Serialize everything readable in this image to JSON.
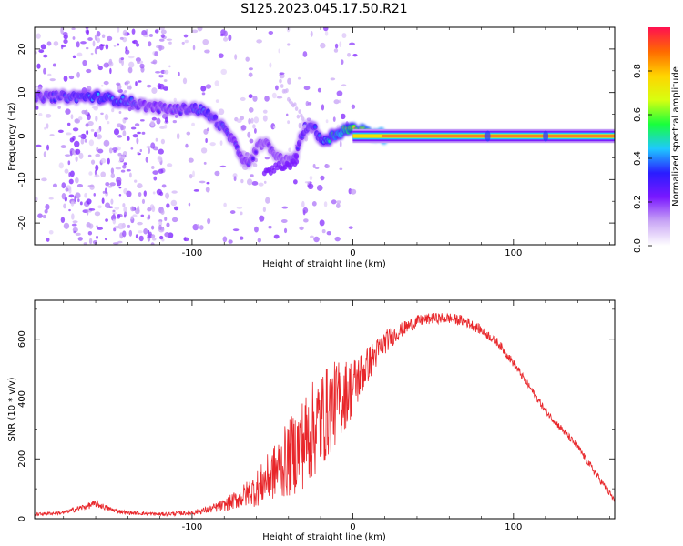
{
  "figure": {
    "title": "S125.2023.045.17.50.R21"
  },
  "chart_data": [
    {
      "type": "heatmap",
      "title": "",
      "xlabel": "Height of straight line (km)",
      "ylabel": "Frequency (Hz)",
      "xlim": [
        -198,
        163
      ],
      "ylim": [
        -25,
        25
      ],
      "x_ticks": [
        -100,
        0,
        100
      ],
      "y_ticks": [
        -20,
        -10,
        0,
        10,
        20
      ],
      "colorbar": {
        "label": "Normalized spectral amplitude",
        "range": [
          0,
          1
        ],
        "ticks": [
          "0.0",
          "0.2",
          "0.4",
          "0.6",
          "0.8"
        ],
        "colors": [
          "#ffffff",
          "#c9a6f5",
          "#7a18ff",
          "#2a1cff",
          "#1ec8ff",
          "#18ff3c",
          "#d7ff10",
          "#ffd400",
          "#ff6a00",
          "#ff1050"
        ]
      },
      "ridge": {
        "description_points_x": [
          -198,
          -180,
          -170,
          -160,
          -150,
          -140,
          -130,
          -120,
          -110,
          -100,
          -95,
          -90,
          -85,
          -80,
          -75,
          -70,
          -65,
          -60,
          -55,
          -50,
          -45,
          -40,
          -35,
          -30,
          -25,
          -20,
          -15,
          -10,
          -5,
          0,
          10,
          20,
          163
        ],
        "freq": [
          9,
          9,
          9,
          9,
          8.5,
          8,
          7,
          6.5,
          6,
          6.5,
          6,
          5,
          3.5,
          1.5,
          -1,
          -4,
          -7,
          -3,
          -1,
          -4,
          -5,
          -6,
          -4,
          2,
          2.5,
          -1,
          -0.5,
          0.5,
          1.5,
          1.5,
          0.5,
          0,
          0
        ],
        "amplitude": [
          0.3,
          0.35,
          0.4,
          0.45,
          0.45,
          0.4,
          0.3,
          0.3,
          0.3,
          0.35,
          0.4,
          0.4,
          0.35,
          0.35,
          0.3,
          0.3,
          0.3,
          0.25,
          0.2,
          0.25,
          0.25,
          0.25,
          0.3,
          0.35,
          0.35,
          0.4,
          0.5,
          0.55,
          0.65,
          0.75,
          0.85,
          0.95,
          0.95
        ]
      }
    },
    {
      "type": "line",
      "title": "",
      "xlabel": "Height of straight line (km)",
      "ylabel": "SNR (10 * v/v)",
      "xlim": [
        -198,
        163
      ],
      "ylim": [
        0,
        730
      ],
      "x_ticks": [
        -100,
        0,
        100
      ],
      "y_ticks": [
        0,
        200,
        400,
        600
      ],
      "color": "#e8262a",
      "envelope_x": [
        -198,
        -180,
        -170,
        -160,
        -150,
        -140,
        -120,
        -100,
        -90,
        -80,
        -70,
        -60,
        -50,
        -40,
        -30,
        -20,
        -10,
        0,
        10,
        20,
        30,
        40,
        50,
        60,
        70,
        80,
        90,
        100,
        110,
        120,
        130,
        140,
        150,
        163
      ],
      "envelope_y": [
        15,
        20,
        35,
        50,
        30,
        20,
        15,
        20,
        30,
        45,
        70,
        100,
        150,
        200,
        260,
        330,
        390,
        440,
        520,
        590,
        630,
        660,
        670,
        670,
        660,
        630,
        590,
        520,
        440,
        360,
        300,
        240,
        160,
        60
      ],
      "noise_amplitude": [
        5,
        6,
        10,
        12,
        8,
        6,
        6,
        8,
        12,
        20,
        35,
        60,
        90,
        130,
        160,
        170,
        140,
        100,
        60,
        40,
        25,
        20,
        18,
        18,
        18,
        16,
        15,
        14,
        12,
        12,
        12,
        12,
        12,
        12
      ]
    }
  ]
}
